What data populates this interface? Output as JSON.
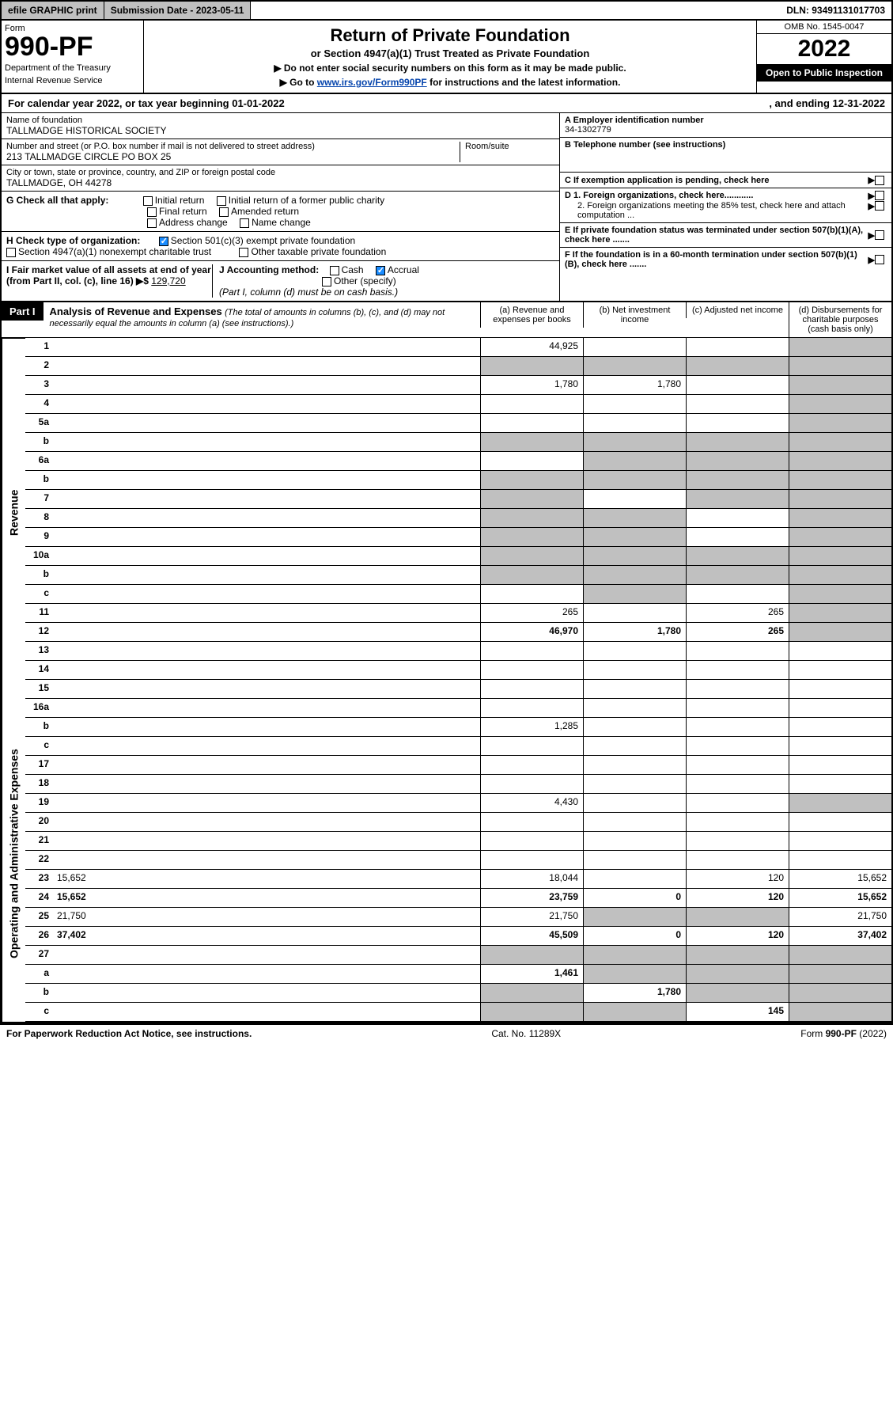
{
  "top": {
    "efile": "efile GRAPHIC print",
    "sub_label": "Submission Date - 2023-05-11",
    "dln": "DLN: 93491131017703"
  },
  "header": {
    "form_label": "Form",
    "form_num": "990-PF",
    "dept": "Department of the Treasury",
    "irs": "Internal Revenue Service",
    "title": "Return of Private Foundation",
    "subtitle": "or Section 4947(a)(1) Trust Treated as Private Foundation",
    "instr1": "▶ Do not enter social security numbers on this form as it may be made public.",
    "instr2_pre": "▶ Go to ",
    "instr2_link": "www.irs.gov/Form990PF",
    "instr2_post": " for instructions and the latest information.",
    "omb": "OMB No. 1545-0047",
    "year": "2022",
    "open": "Open to Public Inspection"
  },
  "calyear": {
    "label": "For calendar year 2022, or tax year beginning 01-01-2022",
    "ending": ", and ending 12-31-2022"
  },
  "A": {
    "label": "A Employer identification number",
    "value": "34-1302779"
  },
  "B": {
    "label": "B Telephone number (see instructions)",
    "value": ""
  },
  "C": "C If exemption application is pending, check here",
  "D1": "D 1. Foreign organizations, check here............",
  "D2": "2. Foreign organizations meeting the 85% test, check here and attach computation ...",
  "E": "E If private foundation status was terminated under section 507(b)(1)(A), check here .......",
  "F": "F If the foundation is in a 60-month termination under section 507(b)(1)(B), check here .......",
  "name": {
    "label": "Name of foundation",
    "value": "TALLMADGE HISTORICAL SOCIETY"
  },
  "addr": {
    "label": "Number and street (or P.O. box number if mail is not delivered to street address)",
    "value": "213 TALLMADGE CIRCLE PO BOX 25",
    "room": "Room/suite"
  },
  "city": {
    "label": "City or town, state or province, country, and ZIP or foreign postal code",
    "value": "TALLMADGE, OH  44278"
  },
  "G": {
    "label": "G Check all that apply:",
    "opts": [
      "Initial return",
      "Initial return of a former public charity",
      "Final return",
      "Amended return",
      "Address change",
      "Name change"
    ]
  },
  "H": {
    "label": "H Check type of organization:",
    "opt1": "Section 501(c)(3) exempt private foundation",
    "opt2": "Section 4947(a)(1) nonexempt charitable trust",
    "opt3": "Other taxable private foundation"
  },
  "I": {
    "label": "I Fair market value of all assets at end of year (from Part II, col. (c), line 16) ▶$",
    "value": "129,720"
  },
  "J": {
    "label": "J Accounting method:",
    "cash": "Cash",
    "accrual": "Accrual",
    "other": "Other (specify)",
    "note": "(Part I, column (d) must be on cash basis.)"
  },
  "part1": {
    "tag": "Part I",
    "title": "Analysis of Revenue and Expenses",
    "sub": "(The total of amounts in columns (b), (c), and (d) may not necessarily equal the amounts in column (a) (see instructions).)"
  },
  "cols": {
    "a": "(a) Revenue and expenses per books",
    "b": "(b) Net investment income",
    "c": "(c) Adjusted net income",
    "d": "(d) Disbursements for charitable purposes (cash basis only)"
  },
  "side": {
    "rev": "Revenue",
    "oae": "Operating and Administrative Expenses"
  },
  "rows": [
    {
      "n": "1",
      "d": "",
      "a": "44,925",
      "b": "",
      "c": "",
      "dshade": true
    },
    {
      "n": "2",
      "d": "",
      "a": "",
      "b": "",
      "c": "",
      "ashade": true,
      "bshade": true,
      "cshade": true,
      "dshade": true
    },
    {
      "n": "3",
      "d": "",
      "a": "1,780",
      "b": "1,780",
      "c": "",
      "dshade": true
    },
    {
      "n": "4",
      "d": "",
      "a": "",
      "b": "",
      "c": "",
      "dshade": true
    },
    {
      "n": "5a",
      "d": "",
      "a": "",
      "b": "",
      "c": "",
      "dshade": true
    },
    {
      "n": "b",
      "d": "",
      "a": "",
      "b": "",
      "c": "",
      "ashade": true,
      "bshade": true,
      "cshade": true,
      "dshade": true
    },
    {
      "n": "6a",
      "d": "",
      "a": "",
      "b": "",
      "c": "",
      "bshade": true,
      "cshade": true,
      "dshade": true
    },
    {
      "n": "b",
      "d": "",
      "a": "",
      "b": "",
      "c": "",
      "ashade": true,
      "bshade": true,
      "cshade": true,
      "dshade": true
    },
    {
      "n": "7",
      "d": "",
      "a": "",
      "b": "",
      "c": "",
      "ashade": true,
      "cshade": true,
      "dshade": true
    },
    {
      "n": "8",
      "d": "",
      "a": "",
      "b": "",
      "c": "",
      "ashade": true,
      "bshade": true,
      "dshade": true
    },
    {
      "n": "9",
      "d": "",
      "a": "",
      "b": "",
      "c": "",
      "ashade": true,
      "bshade": true,
      "dshade": true
    },
    {
      "n": "10a",
      "d": "",
      "a": "",
      "b": "",
      "c": "",
      "ashade": true,
      "bshade": true,
      "cshade": true,
      "dshade": true
    },
    {
      "n": "b",
      "d": "",
      "a": "",
      "b": "",
      "c": "",
      "ashade": true,
      "bshade": true,
      "cshade": true,
      "dshade": true
    },
    {
      "n": "c",
      "d": "",
      "a": "",
      "b": "",
      "c": "",
      "bshade": true,
      "dshade": true
    },
    {
      "n": "11",
      "d": "",
      "a": "265",
      "b": "",
      "c": "265",
      "dshade": true
    },
    {
      "n": "12",
      "d": "",
      "a": "46,970",
      "b": "1,780",
      "c": "265",
      "bold": true,
      "dshade": true
    },
    {
      "n": "13",
      "d": "",
      "a": "",
      "b": "",
      "c": ""
    },
    {
      "n": "14",
      "d": "",
      "a": "",
      "b": "",
      "c": ""
    },
    {
      "n": "15",
      "d": "",
      "a": "",
      "b": "",
      "c": ""
    },
    {
      "n": "16a",
      "d": "",
      "a": "",
      "b": "",
      "c": ""
    },
    {
      "n": "b",
      "d": "",
      "a": "1,285",
      "b": "",
      "c": ""
    },
    {
      "n": "c",
      "d": "",
      "a": "",
      "b": "",
      "c": ""
    },
    {
      "n": "17",
      "d": "",
      "a": "",
      "b": "",
      "c": ""
    },
    {
      "n": "18",
      "d": "",
      "a": "",
      "b": "",
      "c": ""
    },
    {
      "n": "19",
      "d": "",
      "a": "4,430",
      "b": "",
      "c": "",
      "dshade": true
    },
    {
      "n": "20",
      "d": "",
      "a": "",
      "b": "",
      "c": ""
    },
    {
      "n": "21",
      "d": "",
      "a": "",
      "b": "",
      "c": ""
    },
    {
      "n": "22",
      "d": "",
      "a": "",
      "b": "",
      "c": ""
    },
    {
      "n": "23",
      "d": "15,652",
      "a": "18,044",
      "b": "",
      "c": "120"
    },
    {
      "n": "24",
      "d": "15,652",
      "a": "23,759",
      "b": "0",
      "c": "120",
      "bold": true
    },
    {
      "n": "25",
      "d": "21,750",
      "a": "21,750",
      "b": "",
      "c": "",
      "bshade": true,
      "cshade": true
    },
    {
      "n": "26",
      "d": "37,402",
      "a": "45,509",
      "b": "0",
      "c": "120",
      "bold": true
    },
    {
      "n": "27",
      "d": "",
      "a": "",
      "b": "",
      "c": "",
      "ashade": true,
      "bshade": true,
      "cshade": true,
      "dshade": true
    },
    {
      "n": "a",
      "d": "",
      "a": "1,461",
      "b": "",
      "c": "",
      "bold": true,
      "bshade": true,
      "cshade": true,
      "dshade": true
    },
    {
      "n": "b",
      "d": "",
      "a": "",
      "b": "1,780",
      "c": "",
      "bold": true,
      "ashade": true,
      "cshade": true,
      "dshade": true
    },
    {
      "n": "c",
      "d": "",
      "a": "",
      "b": "",
      "c": "145",
      "bold": true,
      "ashade": true,
      "bshade": true,
      "dshade": true
    }
  ],
  "footer": {
    "left": "For Paperwork Reduction Act Notice, see instructions.",
    "mid": "Cat. No. 11289X",
    "right": "Form 990-PF (2022)"
  }
}
